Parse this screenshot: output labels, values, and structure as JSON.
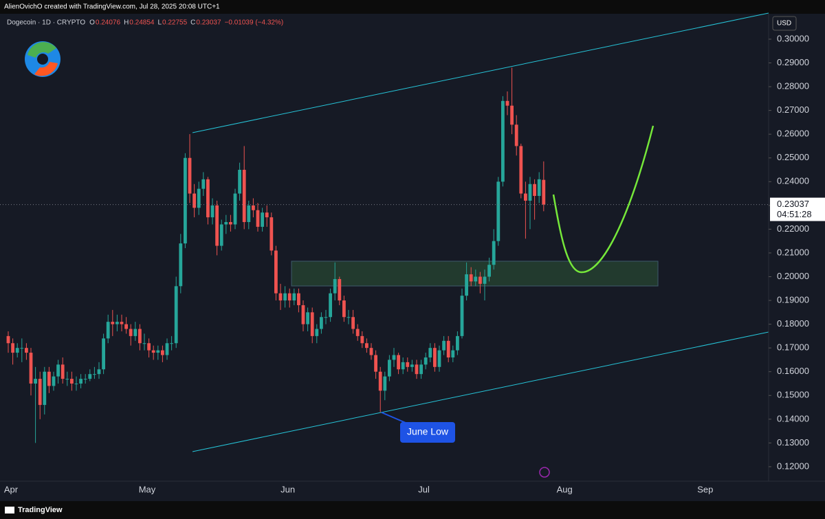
{
  "chart_data": {
    "type": "candlestick",
    "header": "AlienOvichO created with TradingView.com, Jul 28, 2025 20:08 UTC+1",
    "symbol": "Dogecoin · 1D · CRYPTO",
    "ohlc_legend": [
      {
        "label": "O",
        "value": "0.24076"
      },
      {
        "label": "H",
        "value": "0.24854"
      },
      {
        "label": "L",
        "value": "0.22755"
      },
      {
        "label": "C",
        "value": "0.23037"
      }
    ],
    "change": "−0.01039 (−4.32%)",
    "currency": "USD",
    "annotation": "June Low",
    "last_price": 0.23037,
    "countdown": "04:51:28",
    "footer": "TradingView",
    "up_color": "#26a69a",
    "down_color": "#ef5350",
    "categories": [
      "Apr",
      null,
      null,
      null,
      null,
      null,
      null,
      null,
      null,
      null,
      null,
      null,
      null,
      null,
      null,
      null,
      null,
      null,
      null,
      null,
      null,
      null,
      null,
      null,
      null,
      null,
      null,
      null,
      null,
      null,
      "May",
      null,
      null,
      null,
      null,
      null,
      null,
      null,
      null,
      null,
      null,
      null,
      null,
      null,
      null,
      null,
      null,
      null,
      null,
      null,
      null,
      null,
      null,
      null,
      null,
      null,
      null,
      null,
      null,
      null,
      null,
      "Jun",
      null,
      null,
      null,
      null,
      null,
      null,
      null,
      null,
      null,
      null,
      null,
      null,
      null,
      null,
      null,
      null,
      null,
      null,
      null,
      null,
      null,
      null,
      null,
      null,
      null,
      null,
      null,
      null,
      null,
      "Jul",
      null,
      null,
      null,
      null,
      null,
      null,
      null,
      null,
      null,
      null,
      null,
      null,
      null,
      null,
      null,
      null,
      null,
      null,
      null,
      null,
      null,
      null,
      null,
      null,
      null,
      null,
      null,
      null,
      null,
      null,
      "Aug",
      null,
      null,
      null,
      null,
      null,
      null,
      null,
      null,
      null,
      null,
      null,
      null,
      null,
      null,
      null,
      null,
      null,
      null,
      null,
      null,
      null,
      null,
      null,
      null,
      null,
      null,
      null,
      null,
      null,
      null,
      "Sep"
    ],
    "open": [
      0.175,
      0.172,
      0.168,
      0.17,
      0.17,
      0.168,
      0.155,
      0.157,
      0.146,
      0.16,
      0.154,
      0.158,
      0.163,
      0.157,
      0.157,
      0.155,
      0.155,
      0.157,
      0.157,
      0.159,
      0.159,
      0.161,
      0.174,
      0.181,
      0.18,
      0.181,
      0.18,
      0.178,
      0.175,
      0.178,
      0.172,
      0.172,
      0.169,
      0.168,
      0.169,
      0.167,
      0.172,
      0.172,
      0.196,
      0.214,
      0.25,
      0.235,
      0.229,
      0.237,
      0.241,
      0.225,
      0.23,
      0.213,
      0.222,
      0.223,
      0.222,
      0.235,
      0.245,
      0.223,
      0.23,
      0.228,
      0.221,
      0.227,
      0.225,
      0.211,
      0.193,
      0.19,
      0.193,
      0.19,
      0.193,
      0.188,
      0.18,
      0.185,
      0.175,
      0.178,
      0.183,
      0.183,
      0.193,
      0.199,
      0.19,
      0.183,
      0.183,
      0.178,
      0.175,
      0.172,
      0.17,
      0.167,
      0.16,
      0.152,
      0.158,
      0.165,
      0.167,
      0.161,
      0.164,
      0.162,
      0.163,
      0.159,
      0.163,
      0.166,
      0.17,
      0.162,
      0.169,
      0.173,
      0.166,
      0.169,
      0.175,
      0.192,
      0.201,
      0.198,
      0.2,
      0.197,
      0.2,
      0.205,
      0.215,
      0.24,
      0.274,
      0.272,
      0.264,
      0.255,
      0.235,
      0.232,
      0.239,
      0.234,
      0.24076,
      null,
      null,
      null,
      null,
      null,
      null,
      null,
      null,
      null,
      null,
      null,
      null,
      null,
      null,
      null,
      null,
      null,
      null,
      null,
      null,
      null,
      null,
      null,
      null,
      null,
      null,
      null,
      null,
      null,
      null,
      null,
      null,
      null,
      null,
      null
    ],
    "high": [
      0.177,
      0.174,
      0.172,
      0.174,
      0.172,
      0.17,
      0.162,
      0.16,
      0.162,
      0.162,
      0.16,
      0.165,
      0.166,
      0.16,
      0.16,
      0.158,
      0.159,
      0.159,
      0.161,
      0.162,
      0.164,
      0.176,
      0.184,
      0.186,
      0.184,
      0.184,
      0.183,
      0.18,
      0.181,
      0.18,
      0.176,
      0.174,
      0.171,
      0.171,
      0.171,
      0.174,
      0.175,
      0.2,
      0.218,
      0.252,
      0.26,
      0.239,
      0.24,
      0.244,
      0.242,
      0.233,
      0.232,
      0.224,
      0.226,
      0.226,
      0.237,
      0.248,
      0.255,
      0.232,
      0.233,
      0.231,
      0.229,
      0.23,
      0.227,
      0.213,
      0.197,
      0.196,
      0.195,
      0.195,
      0.195,
      0.19,
      0.187,
      0.187,
      0.18,
      0.185,
      0.186,
      0.195,
      0.206,
      0.2,
      0.192,
      0.186,
      0.186,
      0.18,
      0.177,
      0.174,
      0.172,
      0.169,
      0.162,
      0.16,
      0.167,
      0.17,
      0.168,
      0.166,
      0.166,
      0.165,
      0.165,
      0.165,
      0.168,
      0.172,
      0.172,
      0.171,
      0.175,
      0.175,
      0.171,
      0.177,
      0.195,
      0.206,
      0.204,
      0.203,
      0.202,
      0.203,
      0.208,
      0.22,
      0.242,
      0.276,
      0.278,
      0.288,
      0.268,
      0.256,
      0.24,
      0.242,
      0.241,
      0.244,
      0.24854,
      null,
      null,
      null,
      null,
      null,
      null,
      null,
      null,
      null,
      null,
      null,
      null,
      null,
      null,
      null,
      null,
      null,
      null,
      null,
      null,
      null,
      null,
      null,
      null,
      null,
      null,
      null,
      null,
      null,
      null,
      null,
      null,
      null,
      null,
      null
    ],
    "low": [
      0.168,
      0.163,
      0.166,
      0.164,
      0.165,
      0.15,
      0.13,
      0.14,
      0.142,
      0.151,
      0.152,
      0.155,
      0.155,
      0.154,
      0.152,
      0.152,
      0.153,
      0.155,
      0.156,
      0.157,
      0.157,
      0.159,
      0.172,
      0.175,
      0.177,
      0.177,
      0.176,
      0.171,
      0.173,
      0.169,
      0.169,
      0.166,
      0.165,
      0.165,
      0.164,
      0.165,
      0.169,
      0.17,
      0.193,
      0.212,
      0.231,
      0.225,
      0.226,
      0.234,
      0.222,
      0.222,
      0.209,
      0.211,
      0.218,
      0.219,
      0.22,
      0.232,
      0.22,
      0.22,
      0.225,
      0.219,
      0.219,
      0.221,
      0.209,
      0.19,
      0.186,
      0.187,
      0.187,
      0.188,
      0.185,
      0.177,
      0.177,
      0.172,
      0.172,
      0.176,
      0.18,
      0.181,
      0.19,
      0.188,
      0.181,
      0.18,
      0.176,
      0.173,
      0.17,
      0.168,
      0.165,
      0.157,
      0.143,
      0.148,
      0.156,
      0.162,
      0.159,
      0.159,
      0.16,
      0.16,
      0.157,
      0.157,
      0.161,
      0.164,
      0.16,
      0.16,
      0.167,
      0.164,
      0.164,
      0.167,
      0.174,
      0.19,
      0.196,
      0.196,
      0.193,
      0.19,
      0.198,
      0.203,
      0.213,
      0.238,
      0.268,
      0.26,
      0.251,
      0.233,
      0.216,
      0.22,
      0.224,
      0.231,
      0.22755,
      null,
      null,
      null,
      null,
      null,
      null,
      null,
      null,
      null,
      null,
      null,
      null,
      null,
      null,
      null,
      null,
      null,
      null,
      null,
      null,
      null,
      null,
      null,
      null,
      null,
      null,
      null,
      null,
      null,
      null,
      null,
      null,
      null,
      null,
      null
    ],
    "close": [
      0.172,
      0.168,
      0.17,
      0.17,
      0.168,
      0.155,
      0.157,
      0.146,
      0.16,
      0.154,
      0.158,
      0.163,
      0.157,
      0.157,
      0.155,
      0.155,
      0.157,
      0.157,
      0.159,
      0.159,
      0.161,
      0.174,
      0.181,
      0.18,
      0.181,
      0.18,
      0.178,
      0.175,
      0.178,
      0.172,
      0.172,
      0.169,
      0.168,
      0.169,
      0.167,
      0.172,
      0.172,
      0.196,
      0.214,
      0.25,
      0.235,
      0.229,
      0.237,
      0.241,
      0.225,
      0.23,
      0.213,
      0.222,
      0.223,
      0.222,
      0.235,
      0.245,
      0.223,
      0.23,
      0.228,
      0.221,
      0.227,
      0.225,
      0.211,
      0.193,
      0.19,
      0.193,
      0.19,
      0.193,
      0.188,
      0.18,
      0.185,
      0.175,
      0.178,
      0.183,
      0.183,
      0.193,
      0.199,
      0.19,
      0.183,
      0.183,
      0.178,
      0.175,
      0.172,
      0.17,
      0.167,
      0.16,
      0.152,
      0.158,
      0.165,
      0.167,
      0.161,
      0.164,
      0.162,
      0.163,
      0.159,
      0.163,
      0.166,
      0.17,
      0.162,
      0.169,
      0.173,
      0.166,
      0.169,
      0.175,
      0.192,
      0.201,
      0.198,
      0.2,
      0.197,
      0.2,
      0.205,
      0.215,
      0.24,
      0.274,
      0.272,
      0.264,
      0.255,
      0.235,
      0.232,
      0.239,
      0.234,
      0.241,
      0.23037,
      null,
      null,
      null,
      null,
      null,
      null,
      null,
      null,
      null,
      null,
      null,
      null,
      null,
      null,
      null,
      null,
      null,
      null,
      null,
      null,
      null,
      null,
      null,
      null,
      null,
      null,
      null,
      null,
      null,
      null,
      null,
      null,
      null,
      null,
      null
    ],
    "ylim": [
      0.1139,
      0.3107
    ],
    "yticks": [
      {
        "value": 0.12,
        "label": "0.12000"
      },
      {
        "value": 0.13,
        "label": "0.13000"
      },
      {
        "value": 0.14,
        "label": "0.14000"
      },
      {
        "value": 0.15,
        "label": "0.15000"
      },
      {
        "value": 0.16,
        "label": "0.16000"
      },
      {
        "value": 0.17,
        "label": "0.17000"
      },
      {
        "value": 0.18,
        "label": "0.18000"
      },
      {
        "value": 0.19,
        "label": "0.19000"
      },
      {
        "value": 0.2,
        "label": "0.20000"
      },
      {
        "value": 0.21,
        "label": "0.21000"
      },
      {
        "value": 0.22,
        "label": "0.22000"
      },
      {
        "value": 0.23,
        "label": "0.23000"
      },
      {
        "value": 0.24,
        "label": "0.24000"
      },
      {
        "value": 0.25,
        "label": "0.25000"
      },
      {
        "value": 0.26,
        "label": "0.26000"
      },
      {
        "value": 0.27,
        "label": "0.27000"
      },
      {
        "value": 0.28,
        "label": "0.28000"
      },
      {
        "value": 0.29,
        "label": "0.29000"
      },
      {
        "value": 0.3,
        "label": "0.30000"
      }
    ],
    "grid": false
  }
}
